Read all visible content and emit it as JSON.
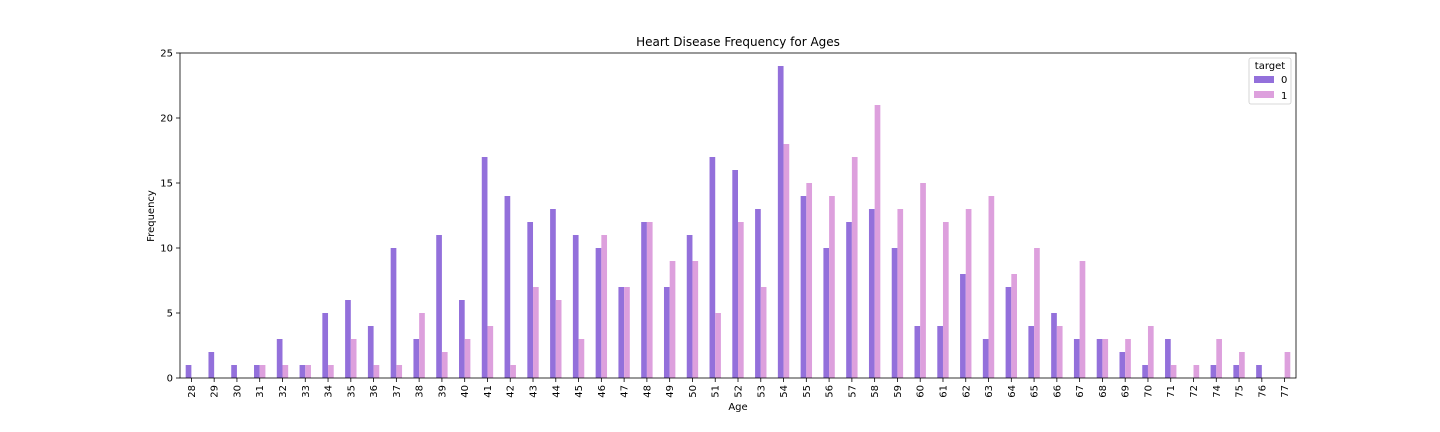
{
  "chart_data": {
    "type": "bar",
    "title": "Heart Disease Frequency for Ages",
    "xlabel": "Age",
    "ylabel": "Frequency",
    "ylim": [
      0,
      25
    ],
    "yticks": [
      0,
      5,
      10,
      15,
      20,
      25
    ],
    "grid": false,
    "legend": {
      "title": "target",
      "placement": "top-right"
    },
    "categories": [
      "28",
      "29",
      "30",
      "31",
      "32",
      "33",
      "34",
      "35",
      "36",
      "37",
      "38",
      "39",
      "40",
      "41",
      "42",
      "43",
      "44",
      "45",
      "46",
      "47",
      "48",
      "49",
      "50",
      "51",
      "52",
      "53",
      "54",
      "55",
      "56",
      "57",
      "58",
      "59",
      "60",
      "61",
      "62",
      "63",
      "64",
      "65",
      "66",
      "67",
      "68",
      "69",
      "70",
      "71",
      "72",
      "74",
      "75",
      "76",
      "77"
    ],
    "series": [
      {
        "name": "0",
        "color": "#9370DB",
        "values": [
          1,
          2,
          1,
          1,
          3,
          1,
          5,
          6,
          4,
          10,
          3,
          11,
          6,
          17,
          14,
          12,
          13,
          11,
          10,
          7,
          12,
          7,
          11,
          17,
          16,
          13,
          24,
          14,
          10,
          12,
          13,
          10,
          4,
          4,
          8,
          3,
          7,
          4,
          5,
          3,
          3,
          2,
          1,
          3,
          0,
          1,
          1,
          1,
          0
        ]
      },
      {
        "name": "1",
        "color": "#DDA0DD",
        "values": [
          0,
          0,
          0,
          1,
          1,
          1,
          1,
          3,
          1,
          1,
          5,
          2,
          3,
          4,
          1,
          7,
          6,
          3,
          11,
          7,
          12,
          9,
          9,
          5,
          12,
          7,
          18,
          15,
          14,
          17,
          21,
          13,
          15,
          12,
          13,
          14,
          8,
          10,
          4,
          9,
          3,
          3,
          4,
          1,
          1,
          3,
          2,
          0,
          2
        ]
      }
    ]
  }
}
